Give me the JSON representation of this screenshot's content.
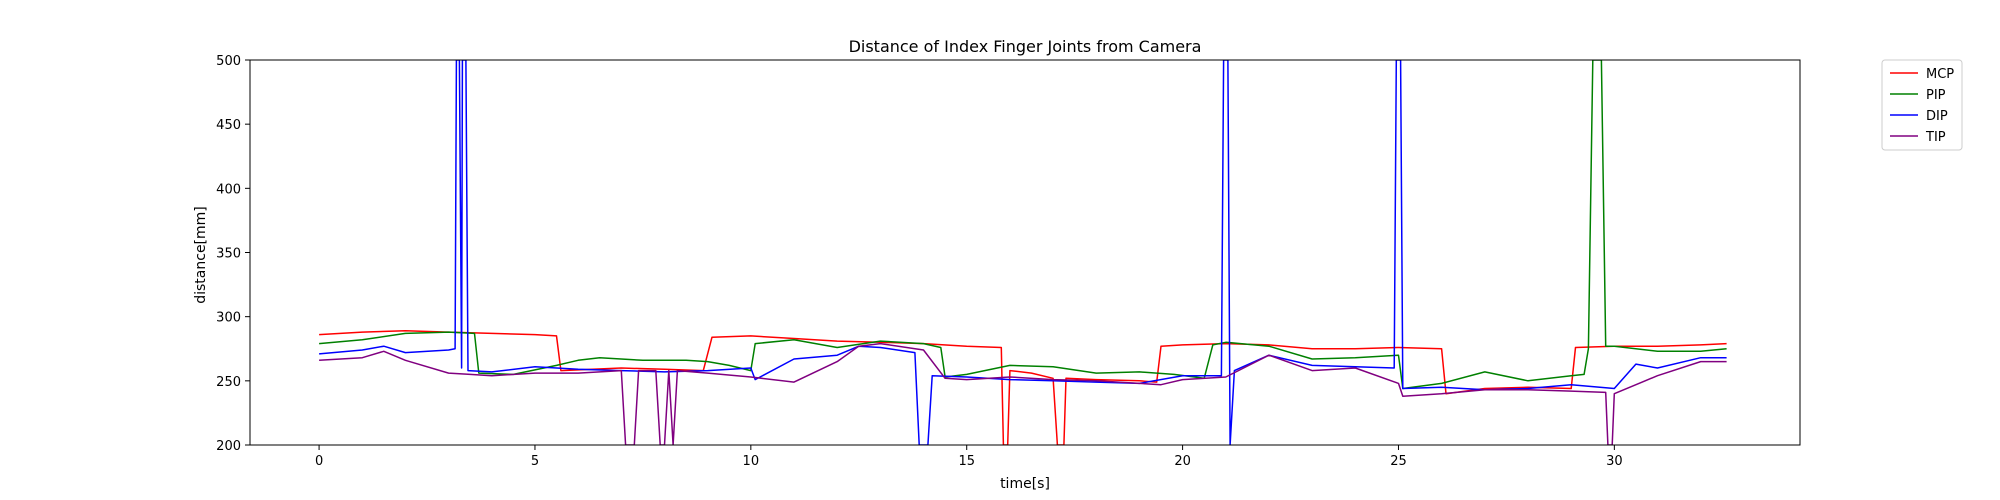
{
  "chart_data": {
    "type": "line",
    "title": "Distance of Index Finger Joints from Camera",
    "xlabel": "time[s]",
    "ylabel": "distance[mm]",
    "xlim": [
      -1.6,
      34.3
    ],
    "ylim": [
      200,
      500
    ],
    "xticks": [
      0,
      5,
      10,
      15,
      20,
      25,
      30
    ],
    "yticks": [
      200,
      250,
      300,
      350,
      400,
      450,
      500
    ],
    "grid": false,
    "legend": "outside-top-right",
    "series": [
      {
        "name": "MCP",
        "color": "#ff0000",
        "points": [
          [
            0,
            286
          ],
          [
            1,
            288
          ],
          [
            2,
            289
          ],
          [
            3,
            288
          ],
          [
            4,
            287
          ],
          [
            5,
            286
          ],
          [
            5.5,
            285
          ],
          [
            5.6,
            258
          ],
          [
            7,
            260
          ],
          [
            8,
            259
          ],
          [
            8.9,
            258
          ],
          [
            9.1,
            284
          ],
          [
            10,
            285
          ],
          [
            11,
            283
          ],
          [
            12,
            281
          ],
          [
            13,
            280
          ],
          [
            14,
            279
          ],
          [
            15,
            277
          ],
          [
            15.8,
            276
          ],
          [
            15.85,
            200
          ],
          [
            15.95,
            200
          ],
          [
            16,
            258
          ],
          [
            16.5,
            256
          ],
          [
            17,
            252
          ],
          [
            17.1,
            200
          ],
          [
            17.25,
            200
          ],
          [
            17.3,
            252
          ],
          [
            18,
            251
          ],
          [
            19,
            250
          ],
          [
            19.4,
            249
          ],
          [
            19.5,
            277
          ],
          [
            20,
            278
          ],
          [
            21,
            279
          ],
          [
            22,
            278
          ],
          [
            23,
            275
          ],
          [
            24,
            275
          ],
          [
            25,
            276
          ],
          [
            26,
            275
          ],
          [
            26.1,
            240
          ],
          [
            27,
            244
          ],
          [
            28,
            245
          ],
          [
            29,
            244
          ],
          [
            29.1,
            276
          ],
          [
            30,
            277
          ],
          [
            31,
            277
          ],
          [
            32,
            278
          ],
          [
            32.6,
            279
          ]
        ]
      },
      {
        "name": "PIP",
        "color": "#008000",
        "points": [
          [
            0,
            279
          ],
          [
            1,
            282
          ],
          [
            2,
            287
          ],
          [
            3,
            288
          ],
          [
            3.6,
            287
          ],
          [
            3.7,
            256
          ],
          [
            4.5,
            255
          ],
          [
            5.5,
            262
          ],
          [
            6,
            266
          ],
          [
            6.5,
            268
          ],
          [
            7.5,
            266
          ],
          [
            8.5,
            266
          ],
          [
            9,
            265
          ],
          [
            9.5,
            262
          ],
          [
            10,
            258
          ],
          [
            10.1,
            279
          ],
          [
            11,
            282
          ],
          [
            12,
            276
          ],
          [
            13,
            281
          ],
          [
            14,
            279
          ],
          [
            14.4,
            276
          ],
          [
            14.5,
            253
          ],
          [
            15,
            255
          ],
          [
            16,
            262
          ],
          [
            17,
            261
          ],
          [
            18,
            256
          ],
          [
            19,
            257
          ],
          [
            19.8,
            255
          ],
          [
            20.5,
            252
          ],
          [
            20.7,
            278
          ],
          [
            21,
            280
          ],
          [
            22,
            277
          ],
          [
            23,
            267
          ],
          [
            24,
            268
          ],
          [
            25,
            270
          ],
          [
            25.1,
            244
          ],
          [
            26,
            248
          ],
          [
            27,
            257
          ],
          [
            28,
            250
          ],
          [
            29,
            254
          ],
          [
            29.3,
            255
          ],
          [
            29.4,
            275
          ],
          [
            29.5,
            500
          ],
          [
            29.7,
            500
          ],
          [
            29.8,
            277
          ],
          [
            30,
            277
          ],
          [
            31,
            273
          ],
          [
            32,
            273
          ],
          [
            32.6,
            275
          ]
        ]
      },
      {
        "name": "DIP",
        "color": "#0000ff",
        "points": [
          [
            0,
            271
          ],
          [
            1,
            274
          ],
          [
            1.5,
            277
          ],
          [
            2,
            272
          ],
          [
            3,
            274
          ],
          [
            3.15,
            275
          ],
          [
            3.18,
            500
          ],
          [
            3.25,
            500
          ],
          [
            3.3,
            260
          ],
          [
            3.32,
            500
          ],
          [
            3.4,
            500
          ],
          [
            3.45,
            258
          ],
          [
            4,
            257
          ],
          [
            5,
            261
          ],
          [
            6,
            259
          ],
          [
            7,
            258
          ],
          [
            8,
            257
          ],
          [
            9,
            258
          ],
          [
            10,
            260
          ],
          [
            10.1,
            251
          ],
          [
            11,
            267
          ],
          [
            12,
            270
          ],
          [
            12.5,
            277
          ],
          [
            13,
            276
          ],
          [
            13.8,
            272
          ],
          [
            13.9,
            200
          ],
          [
            14.1,
            200
          ],
          [
            14.2,
            254
          ],
          [
            15,
            253
          ],
          [
            16,
            251
          ],
          [
            17,
            250
          ],
          [
            18,
            249
          ],
          [
            19,
            248
          ],
          [
            20,
            254
          ],
          [
            20.9,
            254
          ],
          [
            20.95,
            500
          ],
          [
            21.05,
            500
          ],
          [
            21.1,
            200
          ],
          [
            21.2,
            258
          ],
          [
            22,
            270
          ],
          [
            23,
            262
          ],
          [
            24,
            261
          ],
          [
            24.9,
            260
          ],
          [
            24.95,
            500
          ],
          [
            25.05,
            500
          ],
          [
            25.1,
            244
          ],
          [
            26,
            245
          ],
          [
            27,
            243
          ],
          [
            28,
            244
          ],
          [
            29,
            247
          ],
          [
            30,
            244
          ],
          [
            30.5,
            263
          ],
          [
            31,
            260
          ],
          [
            32,
            268
          ],
          [
            32.6,
            268
          ]
        ]
      },
      {
        "name": "TIP",
        "color": "#800080",
        "points": [
          [
            0,
            266
          ],
          [
            1,
            268
          ],
          [
            1.5,
            273
          ],
          [
            2,
            266
          ],
          [
            3,
            256
          ],
          [
            3.5,
            255
          ],
          [
            4,
            254
          ],
          [
            5,
            256
          ],
          [
            6,
            256
          ],
          [
            7,
            258
          ],
          [
            7.1,
            200
          ],
          [
            7.3,
            200
          ],
          [
            7.4,
            258
          ],
          [
            7.8,
            258
          ],
          [
            7.9,
            200
          ],
          [
            8,
            200
          ],
          [
            8.1,
            258
          ],
          [
            8.2,
            200
          ],
          [
            8.3,
            258
          ],
          [
            9,
            256
          ],
          [
            10,
            253
          ],
          [
            11,
            249
          ],
          [
            12,
            265
          ],
          [
            12.5,
            277
          ],
          [
            13,
            279
          ],
          [
            14,
            274
          ],
          [
            14.5,
            252
          ],
          [
            15,
            251
          ],
          [
            16,
            253
          ],
          [
            17,
            251
          ],
          [
            18,
            250
          ],
          [
            19,
            248
          ],
          [
            19.5,
            247
          ],
          [
            20,
            251
          ],
          [
            21,
            253
          ],
          [
            22,
            270
          ],
          [
            23,
            258
          ],
          [
            24,
            260
          ],
          [
            25,
            248
          ],
          [
            25.1,
            238
          ],
          [
            26,
            240
          ],
          [
            27,
            243
          ],
          [
            28,
            243
          ],
          [
            29,
            242
          ],
          [
            29.8,
            241
          ],
          [
            29.85,
            200
          ],
          [
            29.95,
            200
          ],
          [
            30,
            240
          ],
          [
            31,
            254
          ],
          [
            32,
            265
          ],
          [
            32.6,
            265
          ]
        ]
      }
    ]
  }
}
